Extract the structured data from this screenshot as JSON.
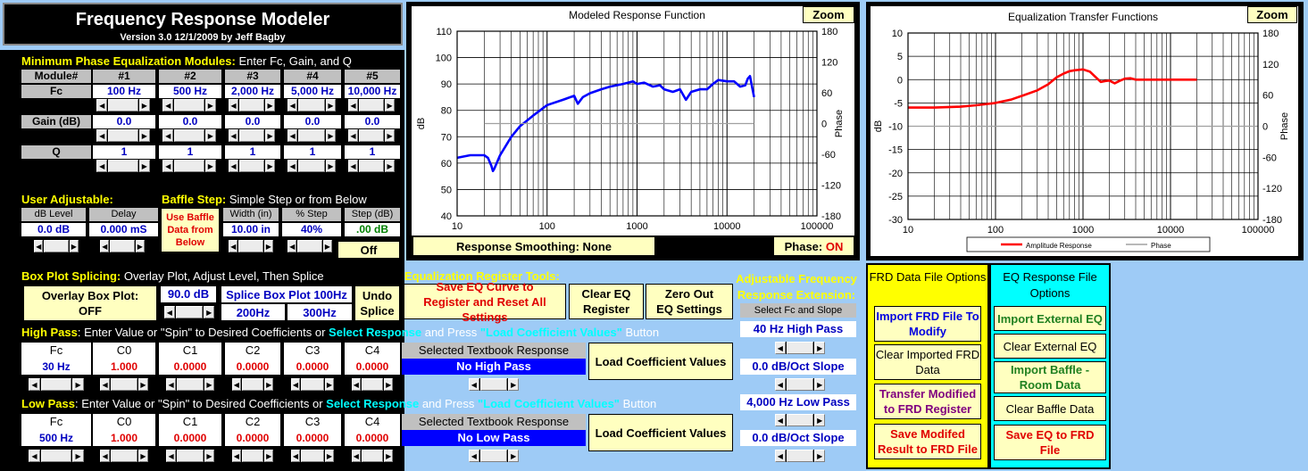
{
  "title": {
    "main": "Frequency Response Modeler",
    "version": "Version 3.0  12/1/2009 by Jeff Bagby"
  },
  "eq_modules": {
    "heading_yellow": "Minimum Phase Equalization Modules:",
    "heading_white": "Enter Fc, Gain, and Q",
    "module_label": "Module#",
    "modules": [
      "#1",
      "#2",
      "#3",
      "#4",
      "#5"
    ],
    "fc_label": "Fc",
    "fc_values": [
      "100 Hz",
      "500 Hz",
      "2,000 Hz",
      "5,000 Hz",
      "10,000 Hz"
    ],
    "gain_label": "Gain (dB)",
    "gain_values": [
      "0.0",
      "0.0",
      "0.0",
      "0.0",
      "0.0"
    ],
    "q_label": "Q",
    "q_values": [
      "1",
      "1",
      "1",
      "1",
      "1"
    ]
  },
  "user_adjustable": {
    "heading": "User Adjustable:",
    "db_level_label": "dB Level",
    "db_level_value": "0.0 dB",
    "delay_label": "Delay",
    "delay_value": "0.000 mS"
  },
  "baffle_step": {
    "heading_yellow": "Baffle Step:",
    "heading_white": "Simple Step or from Below",
    "use_baffle_button": "Use Baffle Data from Below",
    "width_label": "Width (in)",
    "width_value": "10.00 in",
    "pct_step_label": "% Step",
    "pct_step_value": "40%",
    "step_db_label": "Step (dB)",
    "step_db_value": ".00 dB",
    "off_button": "Off"
  },
  "box_plot": {
    "heading_yellow": "Box Plot Splicing:",
    "heading_white": "Overlay Plot, Adjust Level, Then Splice",
    "overlay_label": "Overlay Box Plot:",
    "overlay_value": "OFF",
    "level_value": "90.0 dB",
    "splice_100": "Splice Box Plot 100Hz",
    "splice_200": "200Hz",
    "splice_300": "300Hz",
    "undo_splice": "Undo Splice"
  },
  "eq_register_tools": {
    "heading": "Equalization Register Tools:",
    "save_eq_curve": "Save EQ Curve to Register and Reset All Settings",
    "clear_eq_register": "Clear EQ Register",
    "zero_out": "Zero Out EQ Settings"
  },
  "adjustable_extension": {
    "heading": "Adjustable Frequency Response Extension:",
    "select_label": "Select Fc and Slope",
    "high_pass_value": "40 Hz High Pass",
    "high_slope_value": "0.0 dB/Oct Slope",
    "low_pass_value": "4,000 Hz Low Pass",
    "low_slope_value": "0.0 dB/Oct Slope"
  },
  "high_pass": {
    "heading_yellow": "High Pass",
    "heading_white_1": ": Enter Value or \"Spin\" to Desired Coefficients or",
    "heading_cyan_1": "Select Response",
    "heading_white_2": "and Press",
    "heading_cyan_2": "\"Load Coefficient Values\"",
    "heading_white_3": "Button",
    "columns": [
      "Fc",
      "C0",
      "C1",
      "C2",
      "C3",
      "C4"
    ],
    "values": [
      "30 Hz",
      "1.000",
      "0.0000",
      "0.0000",
      "0.0000",
      "0.0000"
    ],
    "textbook_label": "Selected Textbook Response",
    "textbook_value": "No High Pass",
    "load_button": "Load Coefficient Values"
  },
  "low_pass": {
    "heading_yellow": "Low Pass",
    "heading_white_1": ": Enter Value or \"Spin\" to Desired Coefficients or",
    "heading_cyan_1": "Select Response",
    "heading_white_2": "and Press",
    "heading_cyan_2": "\"Load Coefficient Values\"",
    "heading_white_3": "Button",
    "columns": [
      "Fc",
      "C0",
      "C1",
      "C2",
      "C3",
      "C4"
    ],
    "values": [
      "500 Hz",
      "1.000",
      "0.0000",
      "0.0000",
      "0.0000",
      "0.0000"
    ],
    "textbook_label": "Selected Textbook Response",
    "textbook_value": "No Low Pass",
    "load_button": "Load Coefficient Values"
  },
  "chart1_controls": {
    "zoom": "Zoom",
    "smoothing": "Response Smoothing: None",
    "phase_label": "Phase:",
    "phase_value": "ON"
  },
  "chart2_controls": {
    "zoom": "Zoom",
    "legend_amplitude": "Amplitude Response",
    "legend_phase": "Phase"
  },
  "frd_options": {
    "heading": "FRD Data File Options",
    "import": "Import FRD File To Modify",
    "clear": "Clear Imported FRD Data",
    "transfer": "Transfer Modified to FRD Register",
    "save": "Save Modifed Result to FRD File"
  },
  "eq_options": {
    "heading": "EQ Response File Options",
    "import_external": "Import External EQ",
    "clear_external": "Clear External EQ",
    "import_baffle": "Import Baffle - Room Data",
    "clear_baffle": "Clear Baffle Data",
    "save_eq": "Save EQ to FRD File"
  },
  "colors": {
    "background": "#9ecbf6",
    "panel": "#000000",
    "heading": "#ffff00",
    "accent_cyan": "#00ffff",
    "button": "#ffffc0",
    "selected_blue": "#0000ff"
  },
  "chart_data": [
    {
      "type": "line",
      "title": "Modeled Response Function",
      "xlabel": "",
      "ylabel": "dB",
      "y2label": "Phase",
      "xscale": "log",
      "xlim": [
        10,
        100000
      ],
      "ylim": [
        40,
        110
      ],
      "y2lim": [
        -180,
        180
      ],
      "xticks": [
        "10",
        "100",
        "1000",
        "10000",
        "100000"
      ],
      "yticks": [
        "40",
        "50",
        "60",
        "70",
        "80",
        "90",
        "100",
        "110"
      ],
      "y2ticks": [
        "-180",
        "-120",
        "-60",
        "0",
        "60",
        "120",
        "180"
      ],
      "grid": true,
      "series": [
        {
          "name": "",
          "color": "#0000ff",
          "x": [
            10,
            14,
            20,
            22,
            24,
            25,
            26,
            30,
            40,
            50,
            70,
            100,
            150,
            200,
            220,
            250,
            300,
            400,
            500,
            700,
            900,
            1000,
            1200,
            1500,
            1800,
            2000,
            2500,
            3000,
            3500,
            4000,
            5000,
            6000,
            7000,
            8000,
            10000,
            12000,
            14000,
            16000,
            17000,
            18000,
            19000,
            20000
          ],
          "y": [
            62,
            63,
            63,
            62,
            59,
            57,
            58,
            63,
            70,
            74,
            78,
            82,
            84,
            85.5,
            82.5,
            85,
            86.5,
            88,
            89,
            90,
            91,
            90,
            90.5,
            89,
            89.5,
            88,
            87,
            88,
            84,
            87,
            88,
            88,
            90,
            91.5,
            91,
            91,
            89,
            89.5,
            92,
            93,
            89,
            85
          ]
        },
        {
          "name": "",
          "color": "#a0a0a0",
          "x": [
            20,
            20000
          ],
          "y": [
            0,
            0
          ],
          "axis": "y2"
        }
      ]
    },
    {
      "type": "line",
      "title": "Equalization Transfer Functions",
      "xlabel": "",
      "ylabel": "dB",
      "y2label": "Phase",
      "xscale": "log",
      "xlim": [
        10,
        100000
      ],
      "ylim": [
        -30,
        10
      ],
      "y2lim": [
        -180,
        180
      ],
      "xticks": [
        "10",
        "100",
        "1000",
        "10000",
        "100000"
      ],
      "yticks": [
        "-30",
        "-25",
        "-20",
        "-15",
        "-10",
        "-5",
        "0",
        "5",
        "10"
      ],
      "y2ticks": [
        "-180",
        "-120",
        "-60",
        "0",
        "60",
        "120",
        "180"
      ],
      "grid": true,
      "legend": "bottom",
      "series": [
        {
          "name": "Amplitude Response",
          "color": "#ff0000",
          "x": [
            10,
            20,
            40,
            60,
            100,
            150,
            200,
            300,
            400,
            500,
            600,
            700,
            800,
            1000,
            1200,
            1400,
            1600,
            1800,
            2000,
            2300,
            2600,
            3000,
            3500,
            4000,
            5000,
            7000,
            10000,
            20000
          ],
          "y": [
            -6,
            -6,
            -5.8,
            -5.5,
            -5,
            -4.3,
            -3.5,
            -2.3,
            -1,
            0.5,
            1.3,
            1.8,
            2,
            2.2,
            1.7,
            0.5,
            -0.5,
            -0.3,
            -0.2,
            -0.8,
            -0.3,
            0.2,
            0.3,
            0,
            0,
            0,
            0,
            0
          ]
        },
        {
          "name": "Phase",
          "color": "#a0a0a0",
          "x": [
            10,
            100000
          ],
          "y": [
            0,
            0
          ],
          "axis": "y2"
        }
      ]
    }
  ]
}
